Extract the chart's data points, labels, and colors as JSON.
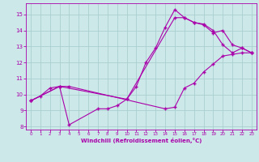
{
  "xlabel": "Windchill (Refroidissement éolien,°C)",
  "bg_color": "#cce8e8",
  "grid_color": "#aacfcf",
  "line_color": "#aa00aa",
  "xlim": [
    -0.5,
    23.5
  ],
  "ylim": [
    7.8,
    15.7
  ],
  "xticks": [
    0,
    1,
    2,
    3,
    4,
    5,
    6,
    7,
    8,
    9,
    10,
    11,
    12,
    13,
    14,
    15,
    16,
    17,
    18,
    19,
    20,
    21,
    22,
    23
  ],
  "yticks": [
    8,
    9,
    10,
    11,
    12,
    13,
    14,
    15
  ],
  "line1_x": [
    0,
    1,
    2,
    3,
    4,
    7,
    8,
    9,
    10,
    11,
    12,
    13,
    14,
    15,
    16,
    17,
    18,
    19,
    20,
    21,
    22,
    23
  ],
  "line1_y": [
    9.6,
    9.9,
    10.4,
    10.5,
    8.1,
    9.1,
    9.1,
    9.3,
    9.7,
    10.5,
    12.0,
    12.9,
    14.2,
    15.3,
    14.8,
    14.5,
    14.4,
    14.0,
    13.1,
    12.6,
    12.9,
    12.6
  ],
  "line2_x": [
    0,
    3,
    10,
    15,
    16,
    17,
    18,
    19,
    20,
    21,
    22,
    23
  ],
  "line2_y": [
    9.6,
    10.5,
    9.7,
    14.8,
    14.8,
    14.5,
    14.35,
    13.85,
    14.0,
    13.1,
    12.9,
    12.6
  ],
  "line3_x": [
    0,
    3,
    4,
    14,
    15,
    16,
    17,
    18,
    19,
    20,
    21,
    22,
    23
  ],
  "line3_y": [
    9.6,
    10.5,
    10.5,
    9.1,
    9.2,
    10.4,
    10.7,
    11.4,
    11.9,
    12.4,
    12.5,
    12.6,
    12.6
  ]
}
